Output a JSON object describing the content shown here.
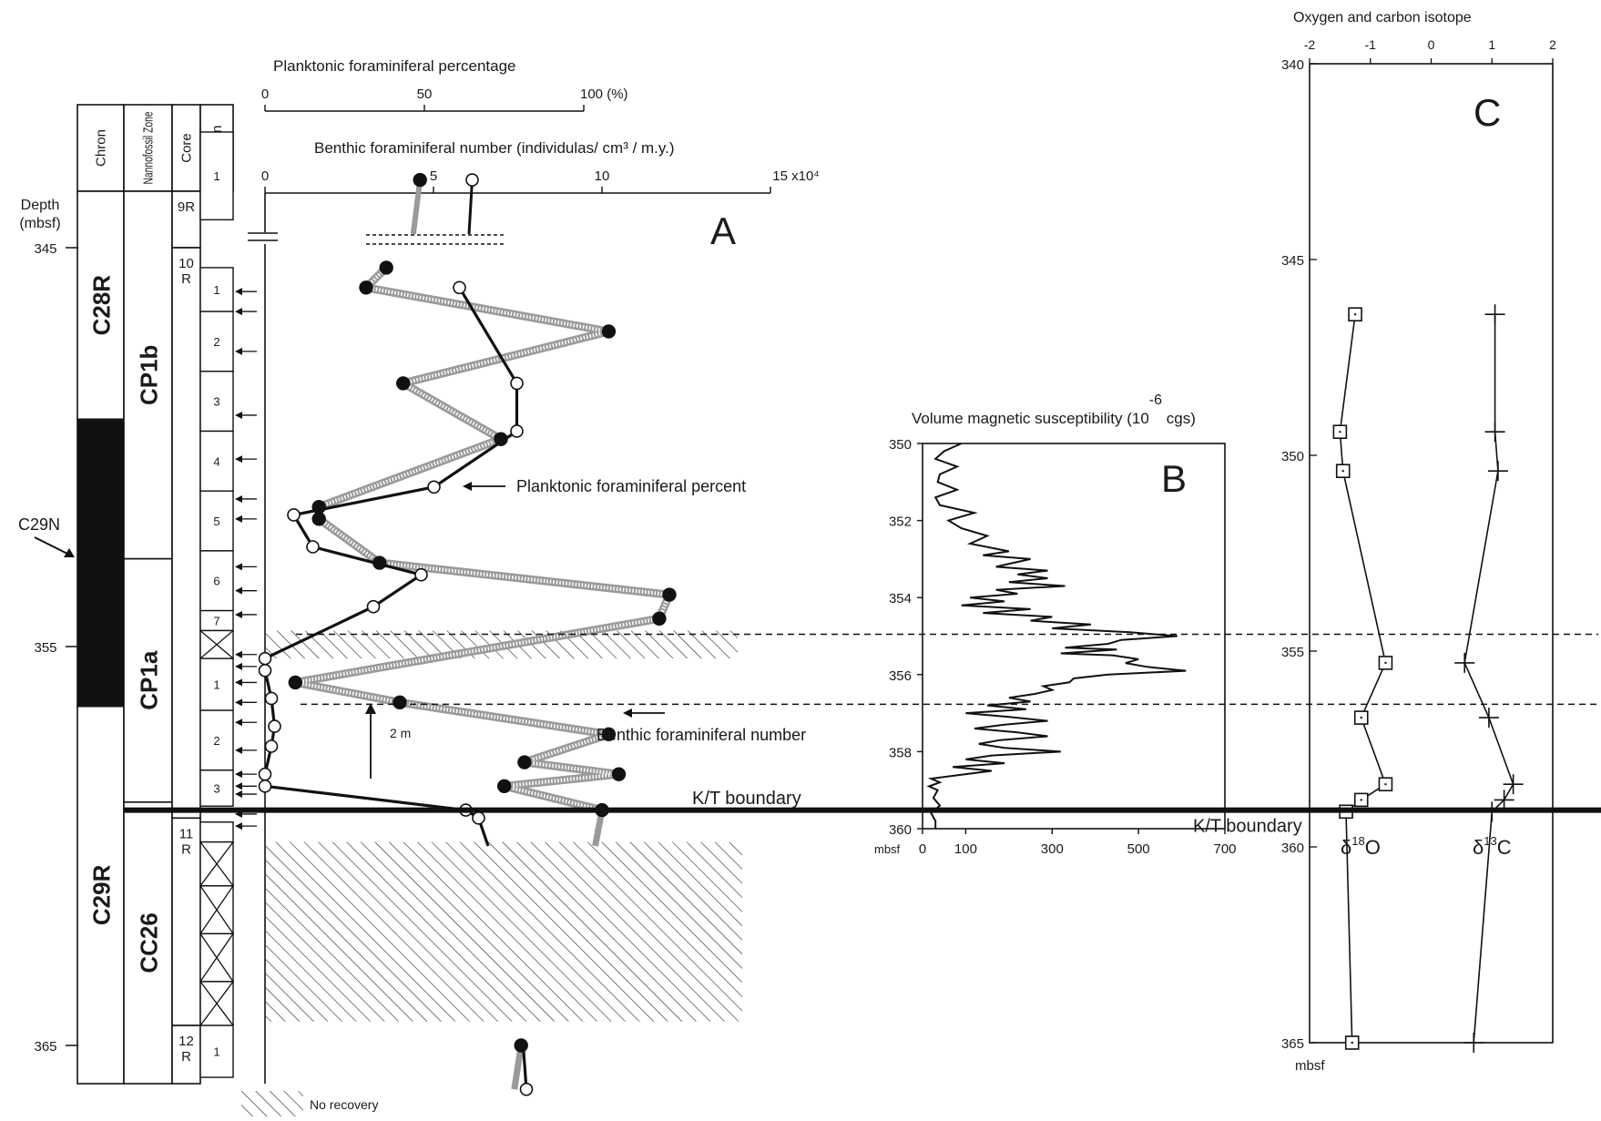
{
  "chart_data": [
    {
      "panel": "A",
      "type": "line",
      "panel_label": "A",
      "depth_axis": {
        "label_lines": [
          "Depth",
          "(mbsf)"
        ],
        "ticks": [
          {
            "v": 345,
            "label": "345"
          },
          {
            "v": 355,
            "label": "355"
          },
          {
            "v": 365,
            "label": "365"
          }
        ],
        "ylim": [
          341.5,
          366
        ]
      },
      "columns": {
        "headers": {
          "chron": "Chron",
          "nanno": "Nannofossil Zone",
          "core": "Core",
          "section": "Section"
        },
        "chron": [
          {
            "top": 341.5,
            "bottom": 349.3,
            "label": "C28R",
            "fill": "#ffffff"
          },
          {
            "top": 349.3,
            "bottom": 356.5,
            "label": "",
            "fill": "#111111"
          },
          {
            "top": 356.5,
            "bottom": 366.0,
            "label": "C29R",
            "fill": "#ffffff"
          }
        ],
        "chron_pointer": "C29N",
        "nanno": [
          {
            "top": 341.5,
            "bottom": 352.8,
            "label": "CP1b"
          },
          {
            "top": 352.8,
            "bottom": 358.9,
            "label": "CP1a"
          },
          {
            "top": 358.9,
            "bottom": 366.0,
            "label": "CC26"
          }
        ],
        "cores": [
          {
            "top": 342.1,
            "bottom": 345.0,
            "label": [
              "9R"
            ]
          },
          {
            "top": 345.0,
            "bottom": 359.3,
            "label": [
              "10",
              "R"
            ]
          },
          {
            "top": 359.3,
            "bottom": 364.5,
            "label": [
              "11",
              "R"
            ]
          },
          {
            "top": 364.5,
            "bottom": 366.0,
            "label": [
              "12",
              "R"
            ]
          }
        ],
        "sections": [
          {
            "top": 342.1,
            "bottom": 344.3,
            "label": "1"
          },
          {
            "top": 345.5,
            "bottom": 346.6,
            "label": "1"
          },
          {
            "top": 346.6,
            "bottom": 348.1,
            "label": "2"
          },
          {
            "top": 348.1,
            "bottom": 349.6,
            "label": "3"
          },
          {
            "top": 349.6,
            "bottom": 351.1,
            "label": "4"
          },
          {
            "top": 351.1,
            "bottom": 352.6,
            "label": "5"
          },
          {
            "top": 352.6,
            "bottom": 354.1,
            "label": "6"
          },
          {
            "top": 354.1,
            "bottom": 354.6,
            "label": "7"
          },
          {
            "top": 354.6,
            "bottom": 355.3,
            "label": "",
            "no_recovery": true
          },
          {
            "top": 355.3,
            "bottom": 356.6,
            "label": "1"
          },
          {
            "top": 356.6,
            "bottom": 358.1,
            "label": "2"
          },
          {
            "top": 358.1,
            "bottom": 359.0,
            "label": "3"
          },
          {
            "top": 359.4,
            "bottom": 359.9,
            "label": ""
          },
          {
            "top": 359.9,
            "bottom": 361.0,
            "label": "",
            "no_recovery": true
          },
          {
            "top": 361.0,
            "bottom": 362.2,
            "label": "",
            "no_recovery": true
          },
          {
            "top": 362.2,
            "bottom": 363.4,
            "label": "",
            "no_recovery": true
          },
          {
            "top": 363.4,
            "bottom": 364.5,
            "label": "",
            "no_recovery": true
          },
          {
            "top": 364.5,
            "bottom": 365.8,
            "label": "1"
          }
        ],
        "sample_arrows": [
          346.1,
          346.6,
          347.6,
          349.2,
          350.3,
          351.3,
          351.8,
          353.0,
          353.6,
          354.2,
          355.2,
          355.5,
          355.9,
          356.4,
          356.9,
          357.6,
          358.2,
          358.5,
          358.7,
          359.2,
          359.5
        ]
      },
      "x_axes": {
        "planktonic": {
          "title": "Planktonic foraminiferal percentage",
          "ticks": [
            "0",
            "50",
            "100 (%)"
          ],
          "xlim": [
            0,
            100
          ]
        },
        "benthic": {
          "title": "Benthic foraminiferal number (individulas/ cm³ / m.y.)",
          "ticks": [
            "0",
            "5",
            "10",
            "15 x10⁴"
          ],
          "xlim": [
            0,
            15
          ]
        }
      },
      "series": [
        {
          "name": "Planktonic foraminiferal percent",
          "marker": "open-circle",
          "points": [
            {
              "d": 346.0,
              "v": 61
            },
            {
              "d": 348.4,
              "v": 79
            },
            {
              "d": 349.6,
              "v": 79
            },
            {
              "d": 351.0,
              "v": 53
            },
            {
              "d": 351.7,
              "v": 9
            },
            {
              "d": 352.5,
              "v": 15
            },
            {
              "d": 353.2,
              "v": 49
            },
            {
              "d": 354.0,
              "v": 34
            },
            {
              "d": 355.3,
              "v": 0
            },
            {
              "d": 355.6,
              "v": 0
            },
            {
              "d": 356.3,
              "v": 2
            },
            {
              "d": 357.0,
              "v": 3
            },
            {
              "d": 357.5,
              "v": 2
            },
            {
              "d": 358.2,
              "v": 0
            },
            {
              "d": 358.5,
              "v": 0
            },
            {
              "d": 359.1,
              "v": 63
            },
            {
              "d": 359.3,
              "v": 67
            }
          ],
          "top_point": {
            "d": 343.3,
            "v": 65
          },
          "tail": [
            {
              "d": 359.3,
              "v": 67
            },
            {
              "d": 360.0,
              "v": 70
            }
          ],
          "bottom_stub": [
            {
              "d": 365.0,
              "v": 81
            },
            {
              "d": 366.1,
              "v": 82
            }
          ]
        },
        {
          "name": "Benthic foraminiferal number",
          "marker": "filled-circle",
          "points": [
            {
              "d": 345.5,
              "v": 3.6
            },
            {
              "d": 346.0,
              "v": 3.0
            },
            {
              "d": 347.1,
              "v": 10.2
            },
            {
              "d": 348.4,
              "v": 4.1
            },
            {
              "d": 349.8,
              "v": 7.0
            },
            {
              "d": 351.5,
              "v": 1.6
            },
            {
              "d": 351.8,
              "v": 1.6
            },
            {
              "d": 352.9,
              "v": 3.4
            },
            {
              "d": 353.7,
              "v": 12.0
            },
            {
              "d": 354.3,
              "v": 11.7
            },
            {
              "d": 355.9,
              "v": 0.9
            },
            {
              "d": 356.4,
              "v": 4.0
            },
            {
              "d": 357.2,
              "v": 10.2
            },
            {
              "d": 357.9,
              "v": 7.7
            },
            {
              "d": 358.2,
              "v": 10.5
            },
            {
              "d": 358.5,
              "v": 7.1
            },
            {
              "d": 359.1,
              "v": 10.0
            }
          ],
          "top_point": {
            "d": 343.3,
            "v": 4.6
          },
          "tail": [
            {
              "d": 359.1,
              "v": 10.0
            },
            {
              "d": 360.0,
              "v": 9.8
            }
          ],
          "bottom_stub": [
            {
              "d": 365.0,
              "v": 7.6
            },
            {
              "d": 366.1,
              "v": 7.4
            }
          ]
        }
      ],
      "annotations": {
        "planktonic_label": "Planktonic foraminiferal percent",
        "benthic_label": "Benthic foraminiferal number",
        "kt_label": "K/T boundary",
        "kt_depth": 359.1,
        "scale_bar": "2 m",
        "legend": "No recovery"
      }
    },
    {
      "panel": "B",
      "type": "line",
      "panel_label": "B",
      "title": "Volume magnetic susceptibility (10",
      "title_exp": "-6",
      "title_tail": " cgs)",
      "xlim": [
        0,
        700
      ],
      "x_ticks": [
        "0",
        "100",
        "300",
        "500",
        "700"
      ],
      "ylim": [
        350,
        360
      ],
      "y_ticks": [
        "350",
        "352",
        "354",
        "356",
        "358",
        "360"
      ],
      "y_unit": "mbsf",
      "kt_label": "K/T boundary",
      "series": [
        {
          "values": [
            [
              350.0,
              90
            ],
            [
              350.2,
              50
            ],
            [
              350.4,
              30
            ],
            [
              350.6,
              80
            ],
            [
              350.8,
              40
            ],
            [
              351.0,
              35
            ],
            [
              351.2,
              80
            ],
            [
              351.4,
              30
            ],
            [
              351.6,
              40
            ],
            [
              351.8,
              120
            ],
            [
              352.0,
              60
            ],
            [
              352.2,
              90
            ],
            [
              352.4,
              150
            ],
            [
              352.6,
              110
            ],
            [
              352.8,
              200
            ],
            [
              352.9,
              140
            ],
            [
              353.0,
              250
            ],
            [
              353.2,
              170
            ],
            [
              353.3,
              290
            ],
            [
              353.4,
              220
            ],
            [
              353.5,
              290
            ],
            [
              353.6,
              200
            ],
            [
              353.7,
              330
            ],
            [
              353.8,
              170
            ],
            [
              353.9,
              220
            ],
            [
              354.0,
              110
            ],
            [
              354.1,
              190
            ],
            [
              354.2,
              90
            ],
            [
              354.3,
              250
            ],
            [
              354.4,
              140
            ],
            [
              354.5,
              300
            ],
            [
              354.6,
              250
            ],
            [
              354.7,
              390
            ],
            [
              354.8,
              300
            ],
            [
              354.9,
              480
            ],
            [
              355.0,
              590
            ],
            [
              355.1,
              460
            ],
            [
              355.2,
              430
            ],
            [
              355.3,
              330
            ],
            [
              355.35,
              450
            ],
            [
              355.45,
              320
            ],
            [
              355.5,
              440
            ],
            [
              355.6,
              500
            ],
            [
              355.7,
              470
            ],
            [
              355.8,
              520
            ],
            [
              355.9,
              610
            ],
            [
              356.0,
              430
            ],
            [
              356.1,
              350
            ],
            [
              356.2,
              340
            ],
            [
              356.3,
              280
            ],
            [
              356.4,
              300
            ],
            [
              356.5,
              260
            ],
            [
              356.6,
              200
            ],
            [
              356.7,
              250
            ],
            [
              356.8,
              150
            ],
            [
              356.9,
              240
            ],
            [
              357.0,
              100
            ],
            [
              357.1,
              200
            ],
            [
              357.2,
              290
            ],
            [
              357.3,
              190
            ],
            [
              357.4,
              120
            ],
            [
              357.5,
              220
            ],
            [
              357.6,
              290
            ],
            [
              357.7,
              180
            ],
            [
              357.8,
              130
            ],
            [
              357.9,
              190
            ],
            [
              358.0,
              320
            ],
            [
              358.1,
              160
            ],
            [
              358.2,
              100
            ],
            [
              358.3,
              190
            ],
            [
              358.4,
              70
            ],
            [
              358.5,
              160
            ],
            [
              358.6,
              90
            ],
            [
              358.7,
              20
            ],
            [
              358.8,
              40
            ],
            [
              358.9,
              15
            ],
            [
              359.0,
              35
            ],
            [
              359.2,
              25
            ],
            [
              359.4,
              40
            ],
            [
              359.6,
              20
            ],
            [
              359.8,
              30
            ],
            [
              360.0,
              30
            ]
          ]
        }
      ]
    },
    {
      "panel": "C",
      "type": "line",
      "panel_label": "C",
      "title": "Oxygen and carbon isotope",
      "xlim": [
        -2,
        2
      ],
      "x_ticks": [
        "-2",
        "-1",
        "0",
        "1",
        "2"
      ],
      "ylim": [
        340,
        365
      ],
      "y_ticks": [
        "340",
        "345",
        "350",
        "355",
        "360",
        "365"
      ],
      "y_unit": "mbsf",
      "series": [
        {
          "label_text": "δ",
          "label_sup": "18",
          "label_tail": "O",
          "marker": "open-square",
          "points": [
            [
              346.4,
              -1.25
            ],
            [
              349.4,
              -1.5
            ],
            [
              350.4,
              -1.45
            ],
            [
              355.3,
              -0.75
            ],
            [
              356.7,
              -1.15
            ],
            [
              358.4,
              -0.75
            ],
            [
              358.8,
              -1.15
            ],
            [
              359.1,
              -1.4
            ],
            [
              365.0,
              -1.3
            ]
          ]
        },
        {
          "label_text": "δ",
          "label_sup": "13",
          "label_tail": "C",
          "marker": "cross",
          "points": [
            [
              346.4,
              1.05
            ],
            [
              349.4,
              1.05
            ],
            [
              350.4,
              1.1
            ],
            [
              355.3,
              0.55
            ],
            [
              356.7,
              0.95
            ],
            [
              358.4,
              1.35
            ],
            [
              358.8,
              1.2
            ],
            [
              359.1,
              1.0
            ],
            [
              365.0,
              0.7
            ]
          ]
        }
      ]
    }
  ]
}
